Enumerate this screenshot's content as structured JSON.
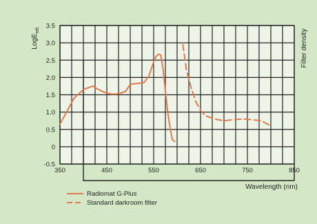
{
  "chart_data": {
    "type": "line",
    "ylabel_main": "LogE",
    "ylabel_sub": "rel.",
    "ylabel_right": "Filter density",
    "xlabel": "Wavelength (nm)",
    "xlim": [
      350,
      850
    ],
    "ylim": [
      -0.5,
      3.5
    ],
    "x_ticks": [
      350,
      450,
      550,
      650,
      750,
      850
    ],
    "y_ticks": [
      -0.5,
      0,
      0.5,
      1.0,
      1.5,
      2.0,
      2.5,
      3.0,
      3.5
    ],
    "y_tick_labels": [
      "-0.5",
      "0",
      "0.5",
      "1.0",
      "1.5",
      "2.0",
      "2.5",
      "3.0",
      "3.5"
    ],
    "grid": true,
    "legend_position": "bottom-left",
    "series": [
      {
        "name": "Radiomat G-Plus",
        "style": "solid",
        "color": "#e07a4e",
        "x": [
          350,
          360,
          380,
          400,
          410,
          420,
          430,
          440,
          450,
          460,
          470,
          480,
          490,
          500,
          510,
          520,
          530,
          540,
          550,
          555,
          560,
          565,
          570,
          575,
          580,
          585,
          590,
          595
        ],
        "y": [
          0.65,
          0.9,
          1.4,
          1.65,
          1.7,
          1.75,
          1.67,
          1.6,
          1.55,
          1.52,
          1.52,
          1.55,
          1.6,
          1.8,
          1.82,
          1.83,
          1.86,
          2.05,
          2.45,
          2.6,
          2.67,
          2.65,
          2.25,
          1.6,
          1.0,
          0.55,
          0.2,
          0.15
        ]
      },
      {
        "name": "Standard darkroom filter",
        "style": "dashed",
        "color": "#e07a4e",
        "x": [
          612,
          615,
          620,
          630,
          640,
          650,
          660,
          680,
          700,
          720,
          740,
          760,
          780,
          800
        ],
        "y": [
          2.95,
          2.7,
          2.2,
          1.7,
          1.3,
          1.05,
          0.9,
          0.8,
          0.75,
          0.78,
          0.8,
          0.78,
          0.75,
          0.6
        ]
      }
    ]
  }
}
